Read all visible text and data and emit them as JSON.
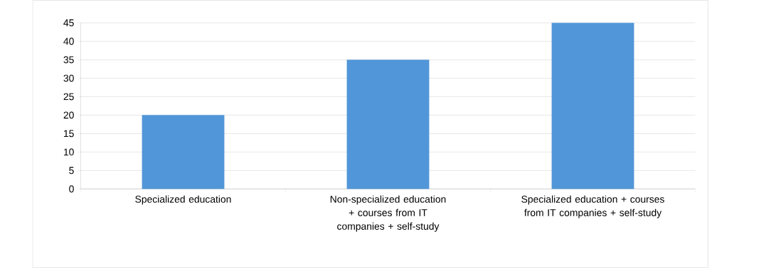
{
  "chart_data": {
    "type": "bar",
    "categories": [
      "Specialized education",
      "Non-specialized education + courses from IT companies + self-study",
      "Specialized education + courses from IT companies + self-study"
    ],
    "values": [
      20,
      35,
      45
    ],
    "color": "#5196d8",
    "ylim": [
      0,
      45
    ],
    "yticks": [
      0,
      5,
      10,
      15,
      20,
      25,
      30,
      35,
      40,
      45
    ],
    "grid": "y"
  }
}
